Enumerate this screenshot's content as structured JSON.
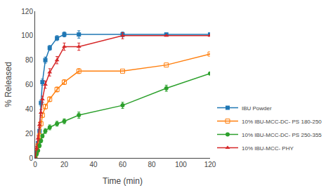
{
  "chart_data": {
    "type": "line",
    "xlabel": "Time (min)",
    "ylabel": "% Released",
    "x": [
      0,
      1,
      2,
      3,
      4,
      5,
      7,
      10,
      15,
      20,
      30,
      60,
      90,
      120
    ],
    "series": [
      {
        "name": "IBU Powder",
        "marker": "square",
        "values": [
          0,
          5,
          12,
          22,
          45,
          62,
          80,
          90,
          98,
          101,
          101,
          101,
          101,
          101
        ],
        "yerr": [
          0,
          1,
          1.5,
          2,
          2.5,
          2.5,
          2.5,
          2,
          2,
          2,
          3,
          2,
          0,
          0
        ]
      },
      {
        "name": "10% IBU-MCC-DC- PS 180-250",
        "marker": "square-open",
        "values": [
          0,
          5,
          10,
          18,
          28,
          35,
          42,
          48,
          56,
          62,
          71,
          71,
          76,
          85
        ],
        "yerr": [
          0,
          1,
          1.5,
          2,
          2,
          2,
          2,
          2,
          2,
          2,
          2,
          0,
          0,
          0
        ]
      },
      {
        "name": "10% IBU-MCC-DC- PS 250-355",
        "marker": "circle",
        "values": [
          0,
          3,
          6,
          10,
          14,
          18,
          22,
          25,
          28,
          30,
          35,
          43,
          57,
          69
        ],
        "yerr": [
          0,
          1,
          1,
          1.5,
          1.5,
          1.5,
          2,
          2,
          2,
          2,
          2.5,
          2.5,
          2.5,
          0
        ]
      },
      {
        "name": "10% IBU-MCC- PHY",
        "marker": "triangle-up",
        "values": [
          0,
          8,
          16,
          27,
          37,
          48,
          60,
          70,
          80,
          91,
          91,
          100,
          100,
          100
        ],
        "yerr": [
          0,
          1.5,
          2,
          2,
          2.5,
          2.5,
          3,
          3,
          3,
          3,
          3,
          2.5,
          0,
          0
        ]
      }
    ],
    "xlim": [
      0,
      120
    ],
    "ylim": [
      0,
      120
    ],
    "xticks": [
      0,
      20,
      40,
      60,
      80,
      100,
      120
    ],
    "yticks": [
      0,
      20,
      40,
      60,
      80,
      100,
      120
    ],
    "grid": false,
    "legend": "lower right"
  }
}
